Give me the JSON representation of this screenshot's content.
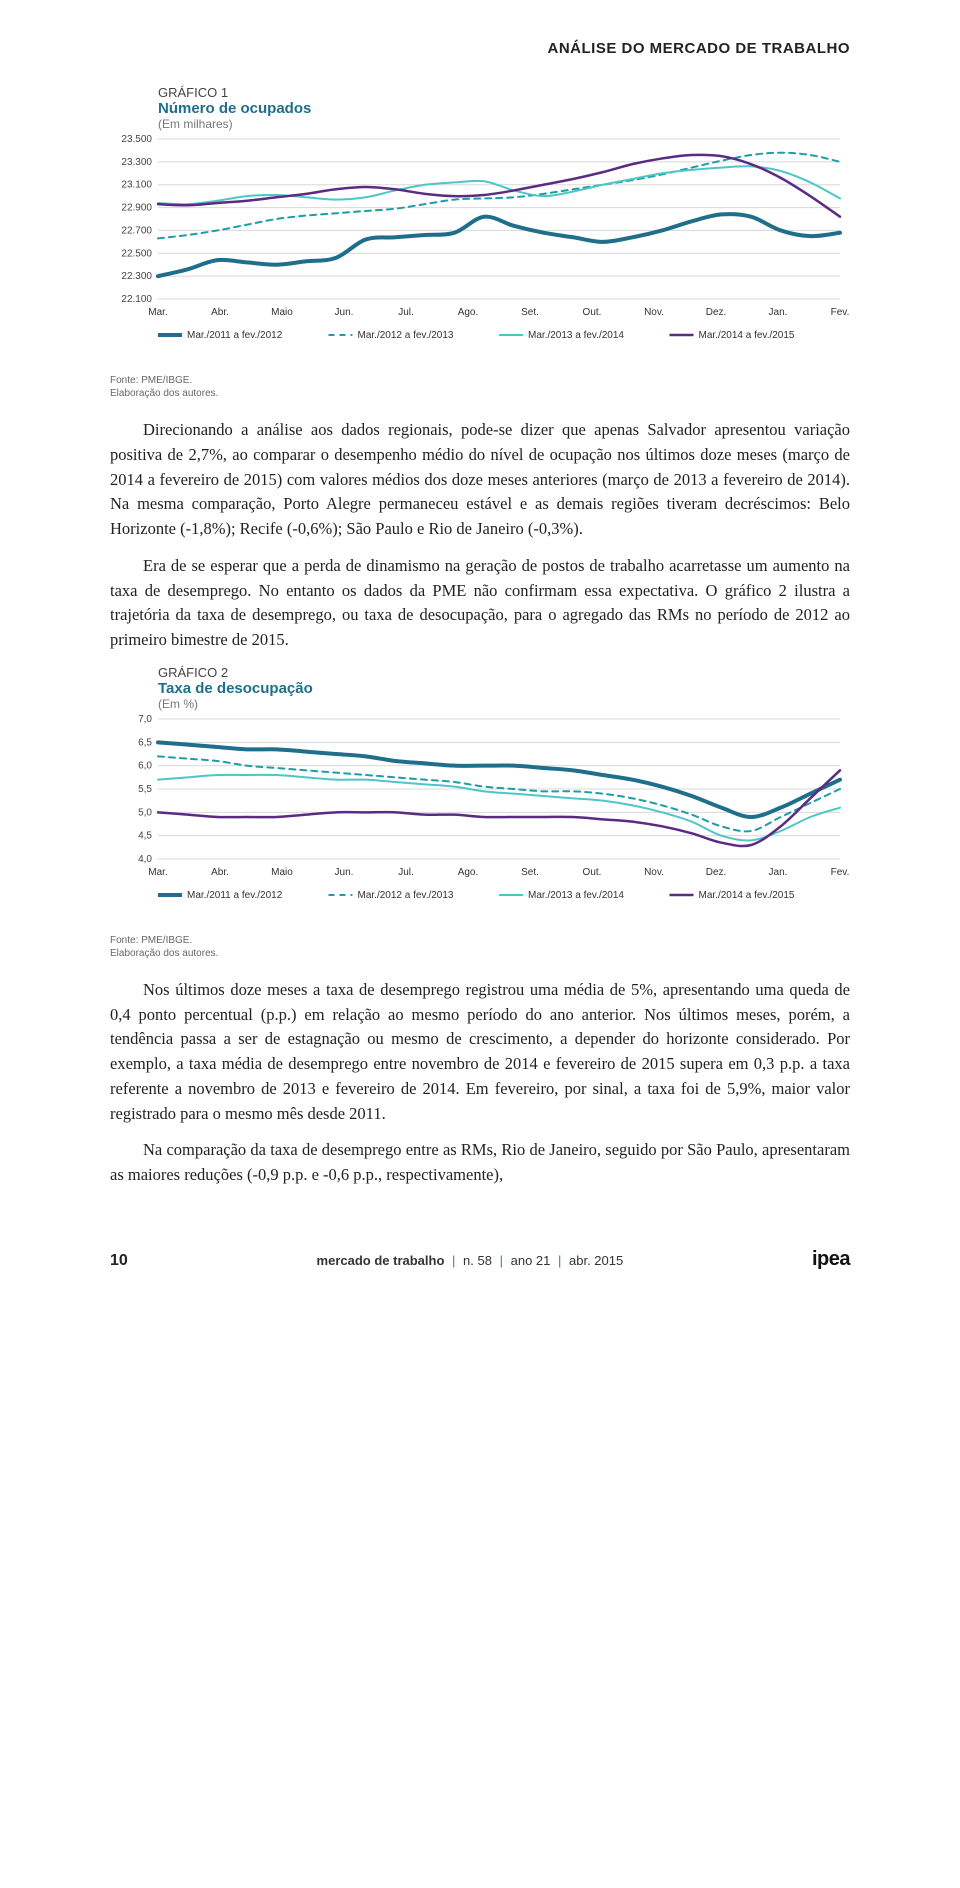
{
  "header": {
    "section_title": "ANÁLISE DO MERCADO DE TRABALHO"
  },
  "chart1": {
    "label": "GRÁFICO 1",
    "title": "Número de ocupados",
    "unit": "(Em milhares)",
    "type": "line",
    "x_categories": [
      "Mar.",
      "Abr.",
      "Maio",
      "Jun.",
      "Jul.",
      "Ago.",
      "Set.",
      "Out.",
      "Nov.",
      "Dez.",
      "Jan.",
      "Fev."
    ],
    "ylim": [
      22100,
      23500
    ],
    "yticks": [
      22100,
      22300,
      22500,
      22700,
      22900,
      23100,
      23300,
      23500
    ],
    "ytick_labels": [
      "22.100",
      "22.300",
      "22.500",
      "22.700",
      "22.900",
      "23.100",
      "23.300",
      "23.500"
    ],
    "label_fontsize": 10,
    "background_color": "#ffffff",
    "grid_color": "#d8d8d8",
    "series": [
      {
        "name": "Mar./2011 a fev./2012",
        "color": "#1f6f8b",
        "width": 4,
        "dash": "none",
        "values": [
          22300,
          22360,
          22440,
          22420,
          22400,
          22430,
          22460,
          22620,
          22640,
          22660,
          22680,
          22820,
          22740,
          22680,
          22640,
          22600,
          22640,
          22700,
          22780,
          22840,
          22820,
          22700,
          22650,
          22680
        ]
      },
      {
        "name": "Mar./2012 a fev./2013",
        "color": "#1f9ca8",
        "width": 2,
        "dash": "6 5",
        "values": [
          22630,
          22660,
          22700,
          22750,
          22800,
          22830,
          22850,
          22870,
          22890,
          22930,
          22970,
          22980,
          22990,
          23020,
          23060,
          23100,
          23140,
          23190,
          23250,
          23310,
          23360,
          23380,
          23360,
          23300
        ]
      },
      {
        "name": "Mar./2013 a fev./2014",
        "color": "#4dc6c6",
        "width": 2,
        "dash": "none",
        "values": [
          22940,
          22930,
          22960,
          23000,
          23010,
          22990,
          22970,
          22990,
          23050,
          23100,
          23120,
          23130,
          23050,
          23000,
          23040,
          23100,
          23150,
          23200,
          23230,
          23250,
          23260,
          23220,
          23120,
          22980
        ]
      },
      {
        "name": "Mar./2014 a fev./2015",
        "color": "#5a2b82",
        "width": 2.5,
        "dash": "none",
        "values": [
          22930,
          22920,
          22940,
          22960,
          22990,
          23020,
          23060,
          23080,
          23060,
          23020,
          23000,
          23010,
          23050,
          23100,
          23150,
          23210,
          23280,
          23330,
          23360,
          23350,
          23280,
          23160,
          23000,
          22820
        ]
      }
    ],
    "legend_items": [
      {
        "label": "Mar./2011 a fev./2012",
        "color": "#1f6f8b",
        "dash": "none",
        "width": 4
      },
      {
        "label": "Mar./2012 a fev./2013",
        "color": "#1f9ca8",
        "dash": "6 5",
        "width": 2
      },
      {
        "label": "Mar./2013 a fev./2014",
        "color": "#4dc6c6",
        "dash": "none",
        "width": 2
      },
      {
        "label": "Mar./2014 a fev./2015",
        "color": "#5a2b82",
        "dash": "none",
        "width": 2.5
      }
    ],
    "source_lines": [
      "Fonte: PME/IBGE.",
      "Elaboração dos autores."
    ]
  },
  "para1": "Direcionando a análise aos dados regionais, pode-se dizer que apenas Salvador apresentou variação positiva de 2,7%, ao comparar o desempenho médio do nível de ocupação nos últimos doze meses (março de 2014 a fevereiro de 2015) com valores médios dos doze meses anteriores (março de 2013 a fevereiro de 2014). Na mesma comparação, Porto Alegre permaneceu estável e as demais regiões tiveram decréscimos: Belo Horizonte (-1,8%); Recife (-0,6%); São Paulo e Rio de Janeiro (-0,3%).",
  "para2": "Era de se esperar que a perda de dinamismo na geração de postos de trabalho acarretasse um aumento na taxa de desemprego. No entanto os dados da PME não confirmam essa expectativa. O gráfico 2 ilustra a trajetória da taxa de desemprego, ou taxa de desocupação, para o agregado das RMs no período de 2012 ao primeiro bimestre de 2015.",
  "chart2": {
    "label": "GRÁFICO 2",
    "title": "Taxa de desocupação",
    "unit": "(Em %)",
    "type": "line",
    "x_categories": [
      "Mar.",
      "Abr.",
      "Maio",
      "Jun.",
      "Jul.",
      "Ago.",
      "Set.",
      "Out.",
      "Nov.",
      "Dez.",
      "Jan.",
      "Fev."
    ],
    "ylim": [
      4.0,
      7.0
    ],
    "yticks": [
      4.0,
      4.5,
      5.0,
      5.5,
      6.0,
      6.5,
      7.0
    ],
    "ytick_labels": [
      "4,0",
      "4,5",
      "5,0",
      "5,5",
      "6,0",
      "6,5",
      "7,0"
    ],
    "label_fontsize": 10,
    "background_color": "#ffffff",
    "grid_color": "#d8d8d8",
    "series": [
      {
        "name": "Mar./2011 a fev./2012",
        "color": "#1f6f8b",
        "width": 4,
        "dash": "none",
        "values": [
          6.5,
          6.45,
          6.4,
          6.35,
          6.35,
          6.3,
          6.25,
          6.2,
          6.1,
          6.05,
          6.0,
          6.0,
          6.0,
          5.95,
          5.9,
          5.8,
          5.7,
          5.55,
          5.35,
          5.1,
          4.9,
          5.1,
          5.4,
          5.7
        ]
      },
      {
        "name": "Mar./2012 a fev./2013",
        "color": "#1f9ca8",
        "width": 2,
        "dash": "6 5",
        "values": [
          6.2,
          6.15,
          6.1,
          6.0,
          5.95,
          5.9,
          5.85,
          5.8,
          5.75,
          5.7,
          5.65,
          5.55,
          5.5,
          5.45,
          5.45,
          5.4,
          5.3,
          5.15,
          4.95,
          4.7,
          4.6,
          4.9,
          5.2,
          5.5
        ]
      },
      {
        "name": "Mar./2013 a fev./2014",
        "color": "#4dc6c6",
        "width": 2,
        "dash": "none",
        "values": [
          5.7,
          5.75,
          5.8,
          5.8,
          5.8,
          5.75,
          5.7,
          5.7,
          5.65,
          5.6,
          5.55,
          5.45,
          5.4,
          5.35,
          5.3,
          5.25,
          5.15,
          5.0,
          4.8,
          4.5,
          4.4,
          4.6,
          4.9,
          5.1
        ]
      },
      {
        "name": "Mar./2014 a fev./2015",
        "color": "#5a2b82",
        "width": 2.5,
        "dash": "none",
        "values": [
          5.0,
          4.95,
          4.9,
          4.9,
          4.9,
          4.95,
          5.0,
          5.0,
          5.0,
          4.95,
          4.95,
          4.9,
          4.9,
          4.9,
          4.9,
          4.85,
          4.8,
          4.7,
          4.55,
          4.35,
          4.3,
          4.7,
          5.3,
          5.9
        ]
      }
    ],
    "legend_items": [
      {
        "label": "Mar./2011 a fev./2012",
        "color": "#1f6f8b",
        "dash": "none",
        "width": 4
      },
      {
        "label": "Mar./2012 a fev./2013",
        "color": "#1f9ca8",
        "dash": "6 5",
        "width": 2
      },
      {
        "label": "Mar./2013 a fev./2014",
        "color": "#4dc6c6",
        "dash": "none",
        "width": 2
      },
      {
        "label": "Mar./2014 a fev./2015",
        "color": "#5a2b82",
        "dash": "none",
        "width": 2.5
      }
    ],
    "source_lines": [
      "Fonte: PME/IBGE.",
      "Elaboração dos autores."
    ]
  },
  "para3": "Nos últimos doze meses a taxa de desemprego registrou uma média de 5%, apresentando uma queda de 0,4 ponto percentual (p.p.) em relação ao mesmo período do ano anterior. Nos últimos meses, porém, a tendência passa a ser de estagnação ou mesmo de crescimento, a depender do horizonte considerado. Por exemplo, a taxa média de desemprego entre novembro de 2014 e fevereiro de 2015 supera em 0,3 p.p. a taxa referente a novembro de 2013 e fevereiro de 2014. Em fevereiro, por sinal, a taxa foi de 5,9%, maior valor registrado para o mesmo mês desde 2011.",
  "para4": "Na comparação da taxa de desemprego entre as RMs, Rio de Janeiro, seguido por São Paulo, apresentaram as maiores reduções (-0,9 p.p. e -0,6 p.p., respectivamente),",
  "footer": {
    "page_number": "10",
    "publication_bold": "mercado de trabalho",
    "publication_rest": "n. 58",
    "publication_year": "ano 21",
    "publication_date": "abr. 2015",
    "logo": "ipea"
  }
}
